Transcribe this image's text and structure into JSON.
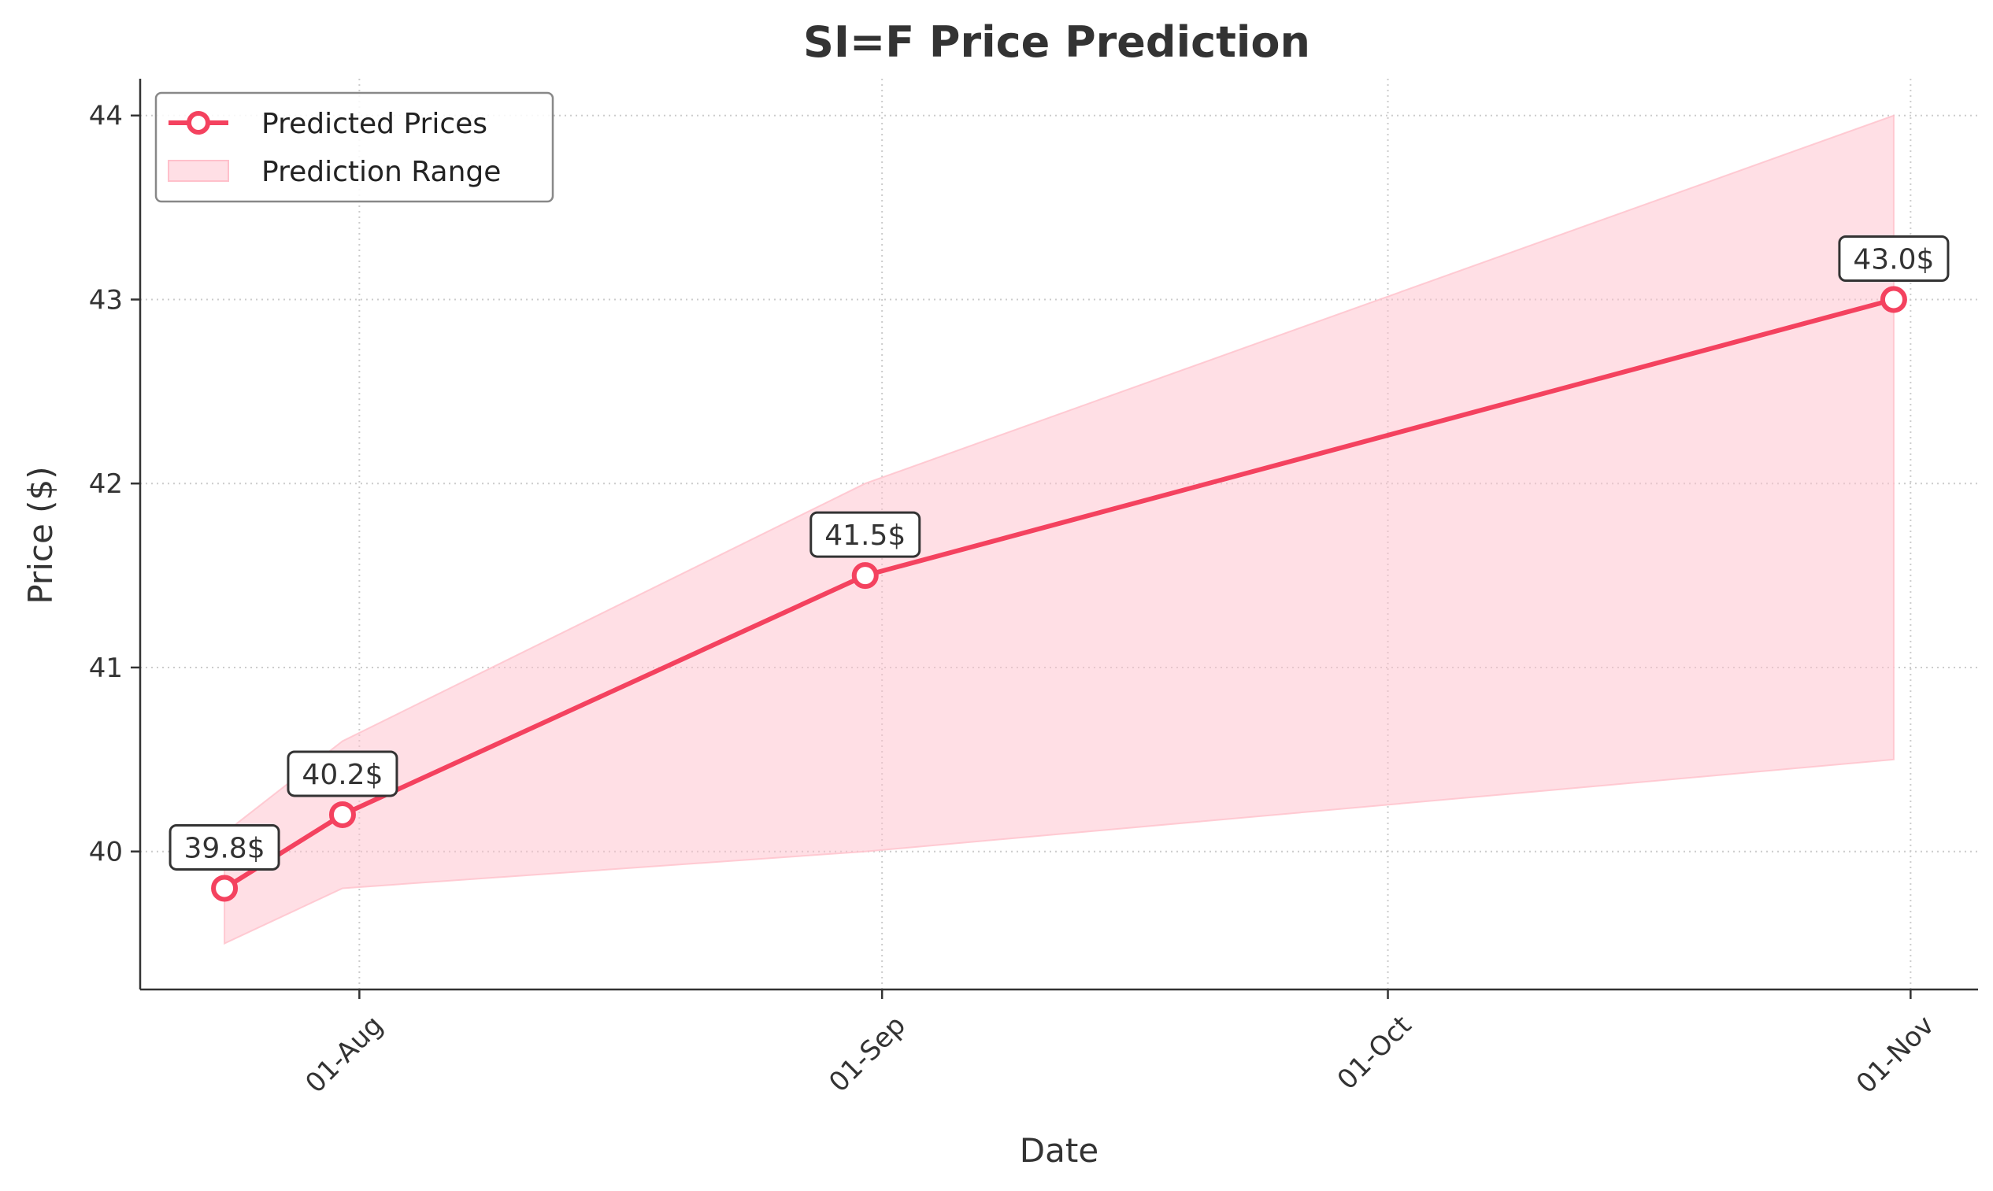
{
  "chart_data": {
    "type": "line",
    "title": "SI=F Price Prediction",
    "xlabel": "Date",
    "ylabel": "Price ($)",
    "x": [
      "2025-07-24",
      "2025-07-31",
      "2025-08-31",
      "2025-10-31"
    ],
    "x_ticks": [
      {
        "date": "2025-08-01",
        "label": "01-Aug"
      },
      {
        "date": "2025-09-01",
        "label": "01-Sep"
      },
      {
        "date": "2025-10-01",
        "label": "01-Oct"
      },
      {
        "date": "2025-11-01",
        "label": "01-Nov"
      }
    ],
    "y_ticks": [
      40,
      41,
      42,
      43,
      44
    ],
    "xlim": [
      "2025-07-19",
      "2025-11-05"
    ],
    "ylim": [
      39.25,
      44.2
    ],
    "grid": true,
    "legend_position": "top-left",
    "series": [
      {
        "name": "Predicted Prices",
        "values": [
          39.8,
          40.2,
          41.5,
          43.0
        ],
        "labels": [
          "39.8$",
          "40.2$",
          "41.5$",
          "43.0$"
        ],
        "color": "#f4425f",
        "marker": "open-circle"
      },
      {
        "name": "Prediction Range",
        "type": "area",
        "lower": [
          39.5,
          39.8,
          40.0,
          40.5
        ],
        "upper": [
          40.1,
          40.6,
          42.0,
          44.0
        ],
        "color": "#ffc0cb"
      }
    ]
  }
}
